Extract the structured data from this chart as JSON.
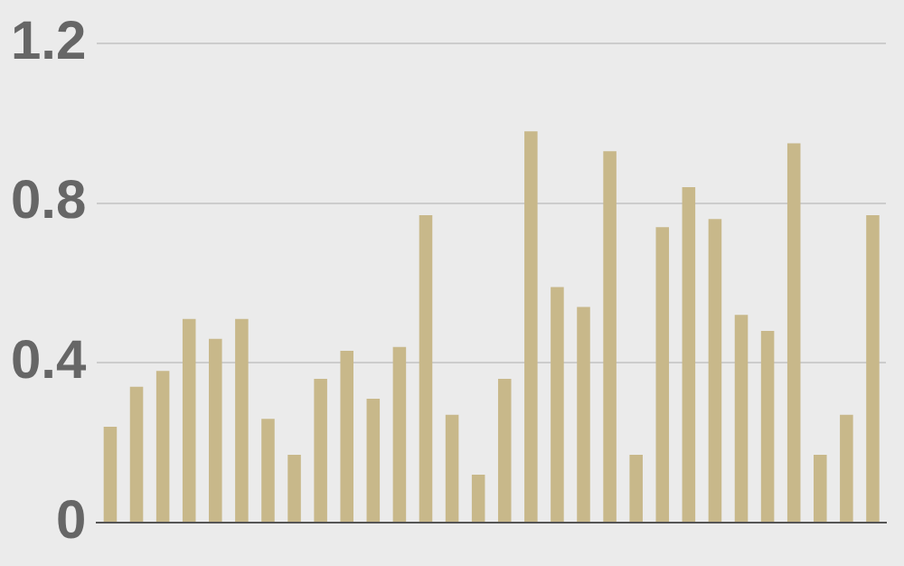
{
  "chart_data": {
    "type": "bar",
    "categories": [
      null,
      null,
      null,
      null,
      null,
      null,
      null,
      null,
      null,
      null,
      null,
      null,
      null,
      null,
      null,
      null,
      null,
      null,
      null,
      null,
      null,
      null,
      null,
      null,
      null,
      null,
      null,
      null,
      null,
      null
    ],
    "values": [
      0.24,
      0.34,
      0.38,
      0.51,
      0.46,
      0.51,
      0.26,
      0.17,
      0.36,
      0.43,
      0.31,
      0.44,
      0.77,
      0.27,
      0.12,
      0.36,
      0.98,
      0.59,
      0.54,
      0.93,
      0.17,
      0.74,
      0.84,
      0.76,
      0.52,
      0.48,
      0.95,
      0.17,
      0.27,
      0.77
    ],
    "color": "#c8b88a",
    "ylim": [
      0,
      1.2
    ],
    "yticks": [
      0,
      0.4,
      0.8,
      1.2
    ],
    "grid": "y",
    "tick_labels": "y"
  }
}
